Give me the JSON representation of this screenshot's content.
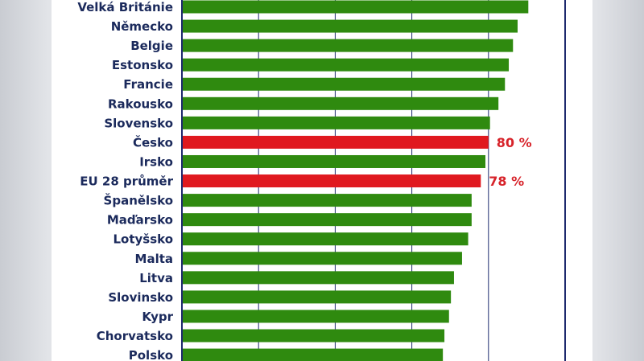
{
  "chart_data": {
    "type": "bar",
    "orientation": "horizontal",
    "categories": [
      "Velká Británie",
      "Německo",
      "Belgie",
      "Estonsko",
      "Francie",
      "Rakousko",
      "Slovensko",
      "Česko",
      "Irsko",
      "EU 28 průměr",
      "Španělsko",
      "Maďarsko",
      "Lotyšsko",
      "Malta",
      "Litva",
      "Slovinsko",
      "Kypr",
      "Chorvatsko",
      "Polsko"
    ],
    "values": [
      90.4,
      87.6,
      86.4,
      85.3,
      84.3,
      82.6,
      80.4,
      80.0,
      79.2,
      78.0,
      75.6,
      75.6,
      74.7,
      73.1,
      71.0,
      70.2,
      69.7,
      68.5,
      68.1
    ],
    "highlight": [
      "Česko",
      "EU 28 průměr"
    ],
    "data_labels": {
      "Česko": "80 %",
      "EU 28 průměr": "78 %"
    },
    "xlim": [
      0,
      100
    ],
    "grid": true,
    "colors": {
      "bar": "#2f8a0f",
      "highlight": "#e0191f",
      "label": "#1b2a5c",
      "value_label": "#d7232a",
      "axis": "#1e2a6e",
      "grid": "#1e2a6e"
    }
  }
}
